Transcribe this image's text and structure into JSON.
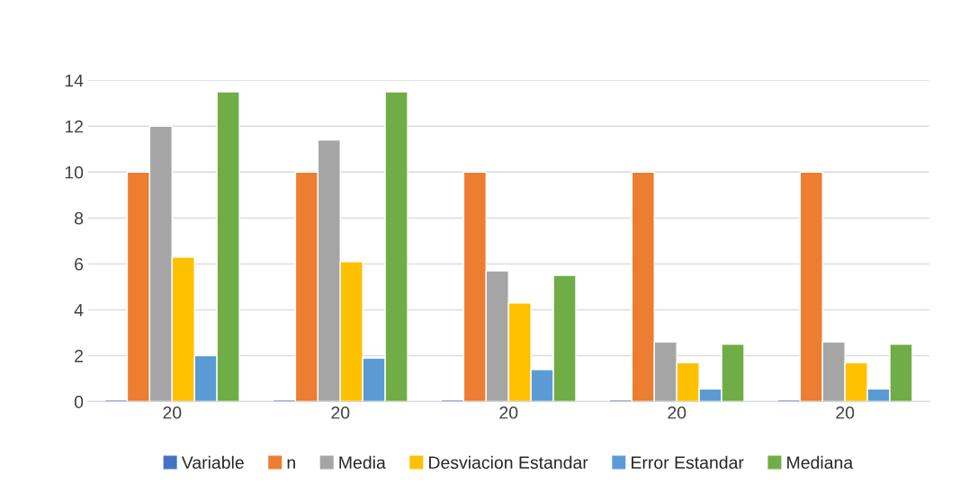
{
  "chart_data": {
    "type": "bar",
    "categories": [
      "20",
      "20",
      "20",
      "20",
      "20"
    ],
    "series": [
      {
        "name": "Variable",
        "color": "#4472c4",
        "values": [
          0,
          0,
          0,
          0,
          0
        ]
      },
      {
        "name": "n",
        "color": "#ed7d31",
        "values": [
          10,
          10,
          10,
          10,
          10
        ]
      },
      {
        "name": "Media",
        "color": "#a5a5a5",
        "values": [
          12,
          11.4,
          5.7,
          2.6,
          2.6
        ]
      },
      {
        "name": "Desviacion Estandar",
        "color": "#ffc000",
        "values": [
          6.3,
          6.1,
          4.3,
          1.7,
          1.7
        ]
      },
      {
        "name": "Error Estandar",
        "color": "#5b9bd5",
        "values": [
          2.0,
          1.9,
          1.4,
          0.55,
          0.55
        ]
      },
      {
        "name": "Mediana",
        "color": "#70ad47",
        "values": [
          13.5,
          13.5,
          5.5,
          2.5,
          2.5
        ]
      }
    ],
    "ylim": [
      0,
      14
    ],
    "yticks": [
      0,
      2,
      4,
      6,
      8,
      10,
      12,
      14
    ],
    "grid": "y",
    "legend": "bottom"
  }
}
